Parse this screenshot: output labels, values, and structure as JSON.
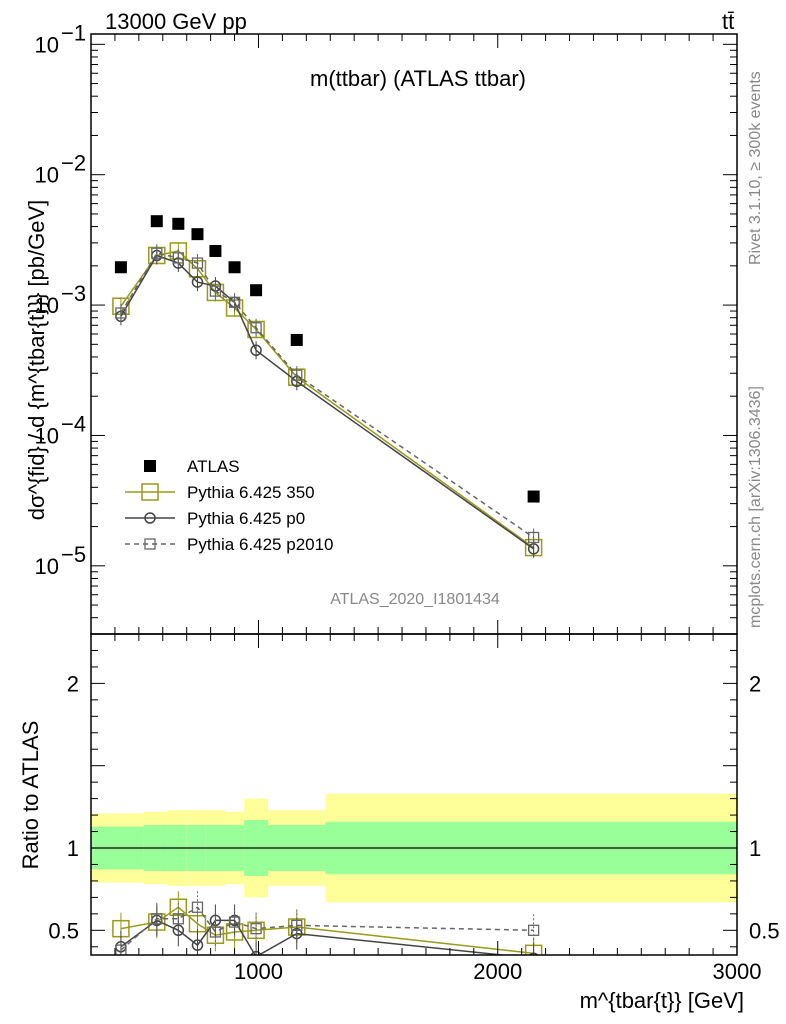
{
  "header": {
    "left": "13000 GeV pp",
    "right": "tt̄"
  },
  "side_labels": {
    "rivet": "Rivet 3.1.10, ≥ 300k events",
    "mcplots": "mcplots.cern.ch [arXiv:1306.3436]"
  },
  "chart_data": [
    {
      "type": "scatter",
      "panel": "main",
      "title": "m(ttbar) (ATLAS ttbar)",
      "watermark": "ATLAS_2020_I1801434",
      "xlabel": "m^{tbar{t}} [GeV]",
      "ylabel": "dσ^{fid} / d {m^{tbar{t}}} [pb/GeV]",
      "xlim": [
        300,
        3000
      ],
      "ylim": [
        3e-06,
        0.12
      ],
      "yscale": "log",
      "y_ticks": [
        {
          "value": 1e-05,
          "label": "10",
          "exp": "−5"
        },
        {
          "value": 0.0001,
          "label": "10",
          "exp": "−4"
        },
        {
          "value": 0.001,
          "label": "10",
          "exp": "−3"
        },
        {
          "value": 0.01,
          "label": "10",
          "exp": "−2"
        },
        {
          "value": 0.1,
          "label": "10",
          "exp": "−1"
        }
      ],
      "legend_position": "bottom-left",
      "series": [
        {
          "name": "ATLAS",
          "color": "#000000",
          "marker": "filled-square",
          "x": [
            425,
            575,
            665,
            745,
            820,
            900,
            990,
            1160,
            2150
          ],
          "y": [
            0.00195,
            0.0044,
            0.0042,
            0.0035,
            0.0026,
            0.00195,
            0.0013,
            0.00054,
            3.4e-05
          ]
        },
        {
          "name": "Pythia 6.425 350",
          "color": "#9a9a1a",
          "marker": "open-square",
          "line": "solid",
          "x": [
            425,
            575,
            665,
            745,
            820,
            900,
            990,
            1160,
            2150
          ],
          "y": [
            0.00098,
            0.0024,
            0.0026,
            0.0019,
            0.00125,
            0.00095,
            0.00065,
            0.00028,
            1.38e-05
          ]
        },
        {
          "name": "Pythia 6.425 p0",
          "color": "#444444",
          "marker": "open-circle",
          "line": "solid",
          "x": [
            425,
            575,
            665,
            745,
            820,
            900,
            990,
            1160,
            2150
          ],
          "y": [
            0.00082,
            0.0024,
            0.0021,
            0.0015,
            0.0014,
            0.00105,
            0.00045,
            0.00026,
            1.35e-05
          ]
        },
        {
          "name": "Pythia 6.425 p2010",
          "color": "#666666",
          "marker": "open-square-small",
          "line": "dashed",
          "x": [
            425,
            575,
            665,
            745,
            820,
            900,
            990,
            1160,
            2150
          ],
          "y": [
            0.00087,
            0.0025,
            0.0023,
            0.0021,
            0.00128,
            0.00105,
            0.00067,
            0.00029,
            1.65e-05
          ]
        }
      ]
    },
    {
      "type": "scatter",
      "panel": "ratio",
      "ylabel": "Ratio to ATLAS",
      "xlim": [
        300,
        3000
      ],
      "ylim": [
        0.35,
        2.3
      ],
      "y_ticks": [
        {
          "value": 0.5,
          "label": "0.5"
        },
        {
          "value": 1,
          "label": "1"
        },
        {
          "value": 2,
          "label": "2"
        }
      ],
      "x_ticks": [
        {
          "value": 1000,
          "label": "1000"
        },
        {
          "value": 2000,
          "label": "2000"
        },
        {
          "value": 3000,
          "label": "3000"
        }
      ],
      "bands": [
        {
          "x0": 300,
          "x1": 520,
          "inner": [
            0.87,
            1.13
          ],
          "outer": [
            0.79,
            1.21
          ]
        },
        {
          "x0": 520,
          "x1": 620,
          "inner": [
            0.86,
            1.14
          ],
          "outer": [
            0.78,
            1.22
          ]
        },
        {
          "x0": 620,
          "x1": 700,
          "inner": [
            0.86,
            1.14
          ],
          "outer": [
            0.77,
            1.23
          ]
        },
        {
          "x0": 700,
          "x1": 780,
          "inner": [
            0.86,
            1.14
          ],
          "outer": [
            0.77,
            1.23
          ]
        },
        {
          "x0": 780,
          "x1": 860,
          "inner": [
            0.86,
            1.14
          ],
          "outer": [
            0.77,
            1.23
          ]
        },
        {
          "x0": 860,
          "x1": 940,
          "inner": [
            0.86,
            1.14
          ],
          "outer": [
            0.78,
            1.22
          ]
        },
        {
          "x0": 940,
          "x1": 1040,
          "inner": [
            0.83,
            1.17
          ],
          "outer": [
            0.7,
            1.3
          ]
        },
        {
          "x0": 1040,
          "x1": 1280,
          "inner": [
            0.86,
            1.14
          ],
          "outer": [
            0.77,
            1.23
          ]
        },
        {
          "x0": 1280,
          "x1": 3000,
          "inner": [
            0.84,
            1.16
          ],
          "outer": [
            0.67,
            1.33
          ]
        }
      ],
      "series": [
        {
          "name": "Pythia 6.425 350",
          "color": "#9a9a1a",
          "x": [
            425,
            575,
            665,
            745,
            820,
            900,
            990,
            1160,
            2150
          ],
          "y": [
            0.51,
            0.55,
            0.64,
            0.54,
            0.47,
            0.49,
            0.5,
            0.52,
            0.36
          ]
        },
        {
          "name": "Pythia 6.425 p0",
          "color": "#444444",
          "x": [
            425,
            575,
            665,
            745,
            820,
            900,
            990,
            1160,
            2150
          ],
          "y": [
            0.4,
            0.56,
            0.5,
            0.41,
            0.56,
            0.56,
            0.34,
            0.48,
            0.33
          ]
        },
        {
          "name": "Pythia 6.425 p2010",
          "color": "#666666",
          "x": [
            425,
            575,
            665,
            745,
            820,
            900,
            990,
            1160,
            2150
          ],
          "y": [
            0.38,
            0.57,
            0.57,
            0.64,
            0.49,
            0.55,
            0.51,
            0.53,
            0.5
          ]
        }
      ]
    }
  ]
}
